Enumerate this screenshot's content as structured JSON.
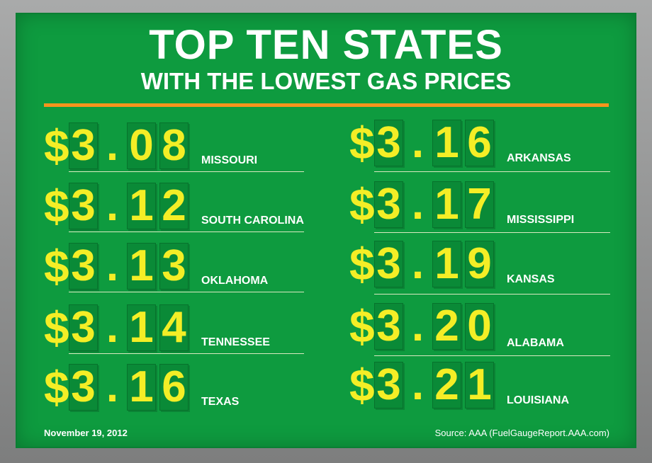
{
  "header": {
    "title": "TOP TEN STATES",
    "subtitle": "WITH THE LOWEST GAS PRICES"
  },
  "left_column": [
    {
      "price": {
        "dollar": "$",
        "d1": "3",
        "dot": ".",
        "d2": "0",
        "d3": "8"
      },
      "state": "MISSOURI"
    },
    {
      "price": {
        "dollar": "$",
        "d1": "3",
        "dot": ".",
        "d2": "1",
        "d3": "2"
      },
      "state": "SOUTH CAROLINA"
    },
    {
      "price": {
        "dollar": "$",
        "d1": "3",
        "dot": ".",
        "d2": "1",
        "d3": "3"
      },
      "state": "OKLAHOMA"
    },
    {
      "price": {
        "dollar": "$",
        "d1": "3",
        "dot": ".",
        "d2": "1",
        "d3": "4"
      },
      "state": "TENNESSEE"
    },
    {
      "price": {
        "dollar": "$",
        "d1": "3",
        "dot": ".",
        "d2": "1",
        "d3": "6"
      },
      "state": "TEXAS"
    }
  ],
  "right_column": [
    {
      "price": {
        "dollar": "$",
        "d1": "3",
        "dot": ".",
        "d2": "1",
        "d3": "6"
      },
      "state": "ARKANSAS"
    },
    {
      "price": {
        "dollar": "$",
        "d1": "3",
        "dot": ".",
        "d2": "1",
        "d3": "7"
      },
      "state": "MISSISSIPPI"
    },
    {
      "price": {
        "dollar": "$",
        "d1": "3",
        "dot": ".",
        "d2": "1",
        "d3": "9"
      },
      "state": "KANSAS"
    },
    {
      "price": {
        "dollar": "$",
        "d1": "3",
        "dot": ".",
        "d2": "2",
        "d3": "0"
      },
      "state": "ALABAMA"
    },
    {
      "price": {
        "dollar": "$",
        "d1": "3",
        "dot": ".",
        "d2": "2",
        "d3": "1"
      },
      "state": "LOUISIANA"
    }
  ],
  "footer": {
    "date": "November 19, 2012",
    "source": "Source: AAA (FuelGaugeReport.AAA.com)"
  },
  "colors": {
    "board": "#0e9b3f",
    "price_digits": "#f4ee26",
    "rule": "#f7941d",
    "text": "#ffffff"
  }
}
